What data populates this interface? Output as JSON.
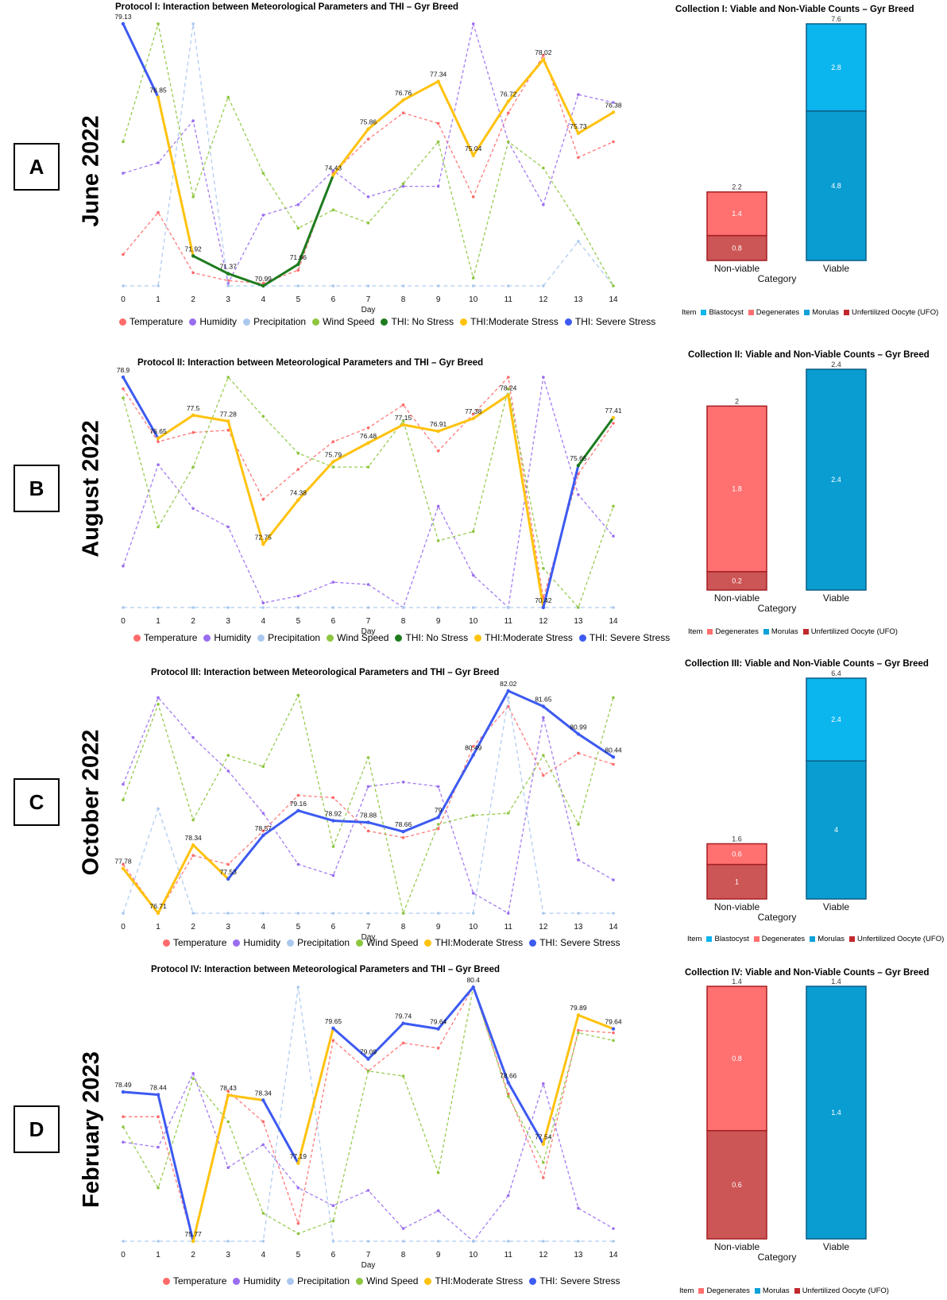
{
  "panels": [
    {
      "key": "a",
      "label": "A",
      "month": "June 2022",
      "line_title": "Protocol I: Interaction between Meteorological Parameters and THI – Gyr Breed",
      "bar_title": "Collection I: Viable and Non-Viable Counts – Gyr Breed",
      "xlabel": "Day",
      "bar_xlabel": "Category",
      "legend": [
        {
          "label": "Temperature",
          "color": "#ff6b6b"
        },
        {
          "label": "Humidity",
          "color": "#9a6df0"
        },
        {
          "label": "Precipitation",
          "color": "#aac8ee"
        },
        {
          "label": "Wind Speed",
          "color": "#8dc63f"
        },
        {
          "label": "THI: No Stress",
          "color": "#1e7b1e"
        },
        {
          "label": "THI:Moderate Stress",
          "color": "#ffc20e"
        },
        {
          "label": "THI: Severe Stress",
          "color": "#3d5af1"
        }
      ],
      "bar_legend_title": "Item",
      "bar_legend": [
        {
          "label": "Blastocyst",
          "color": "#0bb5ee"
        },
        {
          "label": "Degenerates",
          "color": "#ff6f6f"
        },
        {
          "label": "Morulas",
          "color": "#0aa0d8"
        },
        {
          "label": "Unfertilized Oocyte (UFO)",
          "color": "#c0282d"
        }
      ]
    },
    {
      "key": "b",
      "label": "B",
      "month": "August 2022",
      "line_title": "Protocol II: Interaction between Meteorological Parameters and THI – Gyr Breed",
      "bar_title": "Collection II: Viable and Non-Viable Counts – Gyr Breed",
      "xlabel": "Day",
      "bar_xlabel": "Category",
      "legend": [
        {
          "label": "Temperature",
          "color": "#ff6b6b"
        },
        {
          "label": "Humidity",
          "color": "#9a6df0"
        },
        {
          "label": "Precipitation",
          "color": "#aac8ee"
        },
        {
          "label": "Wind Speed",
          "color": "#8dc63f"
        },
        {
          "label": "THI: No Stress",
          "color": "#1e7b1e"
        },
        {
          "label": "THI:Moderate Stress",
          "color": "#ffc20e"
        },
        {
          "label": "THI: Severe Stress",
          "color": "#3d5af1"
        }
      ],
      "bar_legend_title": "Item",
      "bar_legend": [
        {
          "label": "Degenerates",
          "color": "#ff6f6f"
        },
        {
          "label": "Morulas",
          "color": "#0aa0d8"
        },
        {
          "label": "Unfertilized Oocyte (UFO)",
          "color": "#c0282d"
        }
      ]
    },
    {
      "key": "c",
      "label": "C",
      "month": "October 2022",
      "line_title": "Protocol III: Interaction between Meteorological Parameters and THI – Gyr Breed",
      "bar_title": "Collection III: Viable and Non-Viable Counts – Gyr Breed",
      "xlabel": "Day",
      "bar_xlabel": "Category",
      "legend": [
        {
          "label": "Temperature",
          "color": "#ff6b6b"
        },
        {
          "label": "Humidity",
          "color": "#9a6df0"
        },
        {
          "label": "Precipitation",
          "color": "#aac8ee"
        },
        {
          "label": "Wind Speed",
          "color": "#8dc63f"
        },
        {
          "label": "THI:Moderate Stress",
          "color": "#ffc20e"
        },
        {
          "label": "THI: Severe Stress",
          "color": "#3d5af1"
        }
      ],
      "bar_legend_title": "Item",
      "bar_legend": [
        {
          "label": "Blastocyst",
          "color": "#0bb5ee"
        },
        {
          "label": "Degenerates",
          "color": "#ff6f6f"
        },
        {
          "label": "Morulas",
          "color": "#0aa0d8"
        },
        {
          "label": "Unfertilized Oocyte (UFO)",
          "color": "#c0282d"
        }
      ]
    },
    {
      "key": "d",
      "label": "D",
      "month": "February 2023",
      "line_title": "Protocol IV: Interaction between Meteorological Parameters and THI – Gyr Breed",
      "bar_title": "Collection IV: Viable and Non-Viable Counts – Gyr Breed",
      "xlabel": "Day",
      "bar_xlabel": "Category",
      "legend": [
        {
          "label": "Temperature",
          "color": "#ff6b6b"
        },
        {
          "label": "Humidity",
          "color": "#9a6df0"
        },
        {
          "label": "Precipitation",
          "color": "#aac8ee"
        },
        {
          "label": "Wind Speed",
          "color": "#8dc63f"
        },
        {
          "label": "THI:Moderate Stress",
          "color": "#ffc20e"
        },
        {
          "label": "THI: Severe Stress",
          "color": "#3d5af1"
        }
      ],
      "bar_legend_title": "Item",
      "bar_legend": [
        {
          "label": "Degenerates",
          "color": "#ff6f6f"
        },
        {
          "label": "Morulas",
          "color": "#0aa0d8"
        },
        {
          "label": "Unfertilized Oocyte (UFO)",
          "color": "#c0282d"
        }
      ]
    }
  ],
  "chart_data": [
    {
      "type": "line",
      "panel": "A",
      "title": "Protocol I: Interaction between Meteorological Parameters and THI – Gyr Breed",
      "xlabel": "Day",
      "x": [
        0,
        1,
        2,
        3,
        4,
        5,
        6,
        7,
        8,
        9,
        10,
        11,
        12,
        13,
        14
      ],
      "thi_range": [
        70.99,
        79.13
      ],
      "thi_values": [
        79.13,
        76.85,
        71.92,
        71.37,
        70.99,
        71.66,
        74.43,
        75.86,
        76.76,
        77.34,
        75.04,
        76.72,
        78.02,
        75.73,
        76.38
      ],
      "thi_labels": [
        "79.13",
        "76.85",
        "71.92",
        "71.37",
        "70.99",
        "71.66",
        "74.43",
        "75.86",
        "76.76",
        "77.34",
        "75.04",
        "76.72",
        "78.02",
        "75.73",
        "76.38"
      ],
      "thi_class": [
        "Severe",
        "Moderate",
        "No",
        "No",
        "No",
        "No",
        "Moderate",
        "Moderate",
        "Moderate",
        "Moderate",
        "Moderate",
        "Moderate",
        "Moderate",
        "Moderate",
        "Moderate"
      ],
      "series_norm": {
        "Temperature": [
          0.12,
          0.28,
          0.05,
          0.02,
          0.01,
          0.06,
          0.43,
          0.56,
          0.66,
          0.62,
          0.34,
          0.66,
          0.88,
          0.49,
          0.55
        ],
        "Humidity": [
          0.43,
          0.47,
          0.63,
          0.01,
          0.27,
          0.31,
          0.44,
          0.34,
          0.38,
          0.38,
          1.0,
          0.55,
          0.31,
          0.73,
          0.7
        ],
        "Precipitation": [
          0.0,
          0.0,
          1.0,
          0.0,
          0.0,
          0.0,
          0.0,
          0.0,
          0.0,
          0.0,
          0.0,
          0.0,
          0.0,
          0.17,
          0.0
        ],
        "Wind Speed": [
          0.55,
          1.0,
          0.34,
          0.72,
          0.43,
          0.22,
          0.29,
          0.24,
          0.39,
          0.55,
          0.03,
          0.55,
          0.45,
          0.24,
          0.0
        ]
      }
    },
    {
      "type": "line",
      "panel": "B",
      "title": "Protocol II: Interaction between Meteorological Parameters and THI – Gyr Breed",
      "xlabel": "Day",
      "x": [
        0,
        1,
        2,
        3,
        4,
        5,
        6,
        7,
        8,
        9,
        10,
        11,
        12,
        13,
        14
      ],
      "thi_range": [
        70.42,
        78.9
      ],
      "thi_values": [
        78.9,
        76.65,
        77.5,
        77.28,
        72.75,
        74.38,
        75.79,
        76.48,
        77.15,
        76.91,
        77.38,
        78.24,
        70.42,
        75.65,
        77.41
      ],
      "thi_labels": [
        "78.9",
        "76.65",
        "77.5",
        "77.28",
        "72.75",
        "74.38",
        "75.79",
        "76.48",
        "77.15",
        "76.91",
        "77.38",
        "78.24",
        "70.42",
        "75.65",
        "77.41"
      ],
      "thi_class": [
        "Severe",
        "Moderate",
        "Moderate",
        "Moderate",
        "Moderate",
        "Moderate",
        "Moderate",
        "Moderate",
        "Moderate",
        "Moderate",
        "Moderate",
        "Moderate",
        "Severe",
        "No",
        "Moderate"
      ],
      "series_norm": {
        "Temperature": [
          0.95,
          0.72,
          0.76,
          0.77,
          0.47,
          0.6,
          0.72,
          0.78,
          0.88,
          0.68,
          0.84,
          1.0,
          0.04,
          0.58,
          0.8
        ],
        "Humidity": [
          0.18,
          0.62,
          0.43,
          0.35,
          0.02,
          0.05,
          0.11,
          0.1,
          0.0,
          0.44,
          0.14,
          0.0,
          1.0,
          0.49,
          0.31
        ],
        "Precipitation": [
          0.0,
          0.0,
          0.0,
          0.0,
          0.0,
          0.0,
          0.0,
          0.0,
          0.0,
          0.0,
          0.0,
          0.0,
          0.0,
          0.0,
          0.0
        ],
        "Wind Speed": [
          0.91,
          0.35,
          0.61,
          1.0,
          0.83,
          0.67,
          0.61,
          0.61,
          0.81,
          0.29,
          0.33,
          0.95,
          0.17,
          0.0,
          0.44
        ]
      }
    },
    {
      "type": "line",
      "panel": "C",
      "title": "Protocol III: Interaction between Meteorological Parameters and THI – Gyr Breed",
      "xlabel": "Day",
      "x": [
        0,
        1,
        2,
        3,
        4,
        5,
        6,
        7,
        8,
        9,
        10,
        11,
        12,
        13,
        14
      ],
      "thi_range": [
        76.71,
        82.02
      ],
      "thi_values": [
        77.78,
        76.71,
        78.34,
        77.53,
        78.57,
        79.16,
        78.92,
        78.88,
        78.66,
        79.0,
        80.49,
        82.02,
        81.65,
        80.99,
        80.44
      ],
      "thi_labels": [
        "77.78",
        "76.71",
        "78.34",
        "77.53",
        "78.57",
        "79.16",
        "78.92",
        "78.88",
        "78.66",
        "79",
        "80.49",
        "82.02",
        "81.65",
        "80.99",
        "80.44"
      ],
      "thi_class": [
        "Moderate",
        "Moderate",
        "Moderate",
        "Severe",
        "Severe",
        "Severe",
        "Severe",
        "Severe",
        "Severe",
        "Severe",
        "Severe",
        "Severe",
        "Severe",
        "Severe",
        "Severe"
      ],
      "series_norm": {
        "Temperature": [
          0.22,
          0.0,
          0.26,
          0.22,
          0.37,
          0.53,
          0.52,
          0.37,
          0.34,
          0.38,
          0.75,
          0.93,
          0.62,
          0.72,
          0.67
        ],
        "Humidity": [
          0.58,
          0.97,
          0.79,
          0.64,
          0.45,
          0.22,
          0.17,
          0.57,
          0.59,
          0.57,
          0.09,
          0.0,
          0.88,
          0.24,
          0.15
        ],
        "Precipitation": [
          0.0,
          0.47,
          0.0,
          0.0,
          0.0,
          0.0,
          0.0,
          0.0,
          0.0,
          0.0,
          0.0,
          0.97,
          0.0,
          0.0,
          0.0
        ],
        "Wind Speed": [
          0.51,
          0.94,
          0.42,
          0.71,
          0.66,
          0.98,
          0.3,
          0.7,
          0.0,
          0.4,
          0.44,
          0.45,
          0.71,
          0.4,
          0.97
        ]
      }
    },
    {
      "type": "line",
      "panel": "D",
      "title": "Protocol IV: Interaction between Meteorological Parameters and THI – Gyr Breed",
      "xlabel": "Day",
      "x": [
        0,
        1,
        2,
        3,
        4,
        5,
        6,
        7,
        8,
        9,
        10,
        11,
        12,
        13,
        14
      ],
      "thi_range": [
        75.77,
        80.4
      ],
      "thi_values": [
        78.49,
        78.44,
        75.77,
        78.43,
        78.34,
        77.19,
        79.65,
        79.09,
        79.74,
        79.64,
        80.4,
        78.66,
        77.54,
        79.89,
        79.64
      ],
      "thi_labels": [
        "78.49",
        "78.44",
        "75.77",
        "78.43",
        "78.34",
        "77.19",
        "79.65",
        "79.09",
        "79.74",
        "79.64",
        "80.4",
        "78.66",
        "77.54",
        "79.89",
        "79.64"
      ],
      "thi_class": [
        "Severe",
        "Severe",
        "Moderate",
        "Moderate",
        "Severe",
        "Moderate",
        "Severe",
        "Severe",
        "Severe",
        "Severe",
        "Severe",
        "Severe",
        "Moderate",
        "Moderate",
        "Severe"
      ],
      "series_norm": {
        "Temperature": [
          0.49,
          0.49,
          0.0,
          0.59,
          0.47,
          0.07,
          0.79,
          0.67,
          0.78,
          0.76,
          1.0,
          0.58,
          0.25,
          0.83,
          0.82
        ],
        "Humidity": [
          0.39,
          0.37,
          0.66,
          0.29,
          0.38,
          0.21,
          0.14,
          0.2,
          0.05,
          0.12,
          0.0,
          0.18,
          0.62,
          0.13,
          0.05
        ],
        "Precipitation": [
          0.0,
          0.0,
          0.0,
          0.0,
          0.0,
          1.0,
          0.0,
          0.0,
          0.0,
          0.0,
          0.0,
          0.0,
          0.0,
          0.0,
          0.0
        ],
        "Wind Speed": [
          0.45,
          0.21,
          0.64,
          0.47,
          0.11,
          0.03,
          0.08,
          0.67,
          0.65,
          0.27,
          1.0,
          0.57,
          0.31,
          0.82,
          0.79
        ]
      }
    },
    {
      "type": "bar",
      "panel": "A",
      "title": "Collection I: Viable and Non-Viable Counts – Gyr Breed",
      "xlabel": "Category",
      "categories": [
        "Non-viable",
        "Viable"
      ],
      "ymax": 7.6,
      "stacks": [
        {
          "category": "Non-viable",
          "total": "2.2",
          "segments": [
            {
              "item": "Unfertilized Oocyte (UFO)",
              "value": 0.8,
              "label": "0.8"
            },
            {
              "item": "Degenerates",
              "value": 1.4,
              "label": "1.4"
            }
          ]
        },
        {
          "category": "Viable",
          "total": "7.6",
          "segments": [
            {
              "item": "Morulas",
              "value": 4.8,
              "label": "4.8"
            },
            {
              "item": "Blastocyst",
              "value": 2.8,
              "label": "2.8"
            }
          ]
        }
      ]
    },
    {
      "type": "bar",
      "panel": "B",
      "title": "Collection II: Viable and Non-Viable Counts – Gyr Breed",
      "xlabel": "Category",
      "categories": [
        "Non-viable",
        "Viable"
      ],
      "ymax": 2.4,
      "stacks": [
        {
          "category": "Non-viable",
          "total": "2",
          "segments": [
            {
              "item": "Unfertilized Oocyte (UFO)",
              "value": 0.2,
              "label": "0.2"
            },
            {
              "item": "Degenerates",
              "value": 1.8,
              "label": "1.8"
            }
          ]
        },
        {
          "category": "Viable",
          "total": "2.4",
          "segments": [
            {
              "item": "Morulas",
              "value": 2.4,
              "label": "2.4"
            }
          ]
        }
      ]
    },
    {
      "type": "bar",
      "panel": "C",
      "title": "Collection III: Viable and Non-Viable Counts – Gyr Breed",
      "xlabel": "Category",
      "categories": [
        "Non-viable",
        "Viable"
      ],
      "ymax": 6.4,
      "stacks": [
        {
          "category": "Non-viable",
          "total": "1.6",
          "segments": [
            {
              "item": "Unfertilized Oocyte (UFO)",
              "value": 1.0,
              "label": "1"
            },
            {
              "item": "Degenerates",
              "value": 0.6,
              "label": "0.6"
            }
          ]
        },
        {
          "category": "Viable",
          "total": "6.4",
          "segments": [
            {
              "item": "Morulas",
              "value": 4.0,
              "label": "4"
            },
            {
              "item": "Blastocyst",
              "value": 2.4,
              "label": "2.4"
            }
          ]
        }
      ]
    },
    {
      "type": "bar",
      "panel": "D",
      "title": "Collection IV: Viable and Non-Viable Counts – Gyr Breed",
      "xlabel": "Category",
      "categories": [
        "Non-viable",
        "Viable"
      ],
      "ymax": 1.4,
      "stacks": [
        {
          "category": "Non-viable",
          "total": "1.4",
          "segments": [
            {
              "item": "Unfertilized Oocyte (UFO)",
              "value": 0.6,
              "label": "0.6"
            },
            {
              "item": "Degenerates",
              "value": 0.8,
              "label": "0.8"
            }
          ]
        },
        {
          "category": "Viable",
          "total": "1.4",
          "segments": [
            {
              "item": "Morulas",
              "value": 1.4,
              "label": "1.4"
            }
          ]
        }
      ]
    }
  ]
}
